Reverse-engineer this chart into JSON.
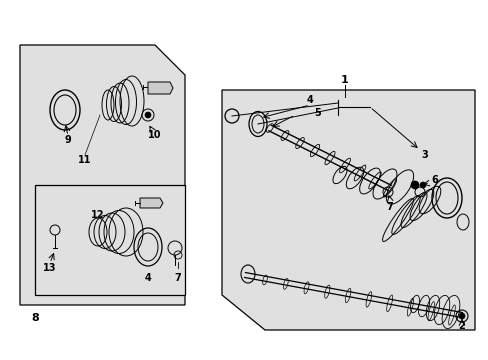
{
  "bg_color": "#ffffff",
  "panel_bg": "#e0e0e0",
  "border_color": "#000000",
  "figsize": [
    4.89,
    3.6
  ],
  "dpi": 100
}
